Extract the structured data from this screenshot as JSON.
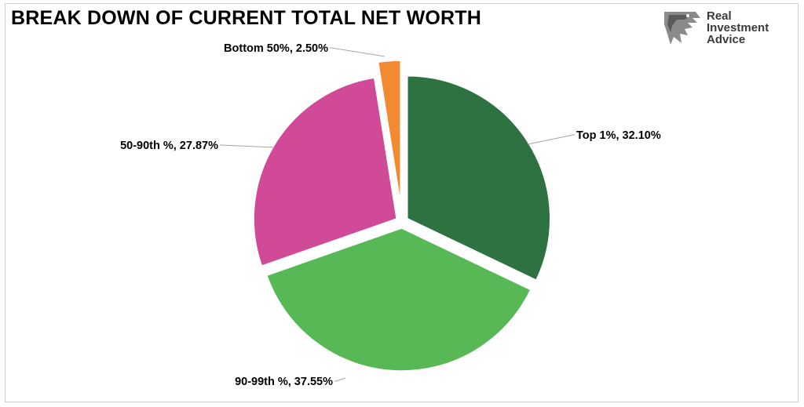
{
  "chart_data": {
    "type": "pie",
    "title": "BREAK DOWN OF CURRENT TOTAL NET WORTH",
    "slices": [
      {
        "label": "Top 1%, 32.10%",
        "value": 32.1,
        "color": "#2d7240"
      },
      {
        "label": "90-99th %, 37.55%",
        "value": 37.55,
        "color": "#57b955"
      },
      {
        "label": "50-90th %, 27.87%",
        "value": 27.87,
        "color": "#d04a98"
      },
      {
        "label": "Bottom 50%, 2.50%",
        "value": 2.5,
        "color": "#f28a32"
      }
    ]
  },
  "logo": {
    "line1": "Real",
    "line2": "Investment",
    "line3": "Advice",
    "icon": "eagle-head-icon"
  }
}
